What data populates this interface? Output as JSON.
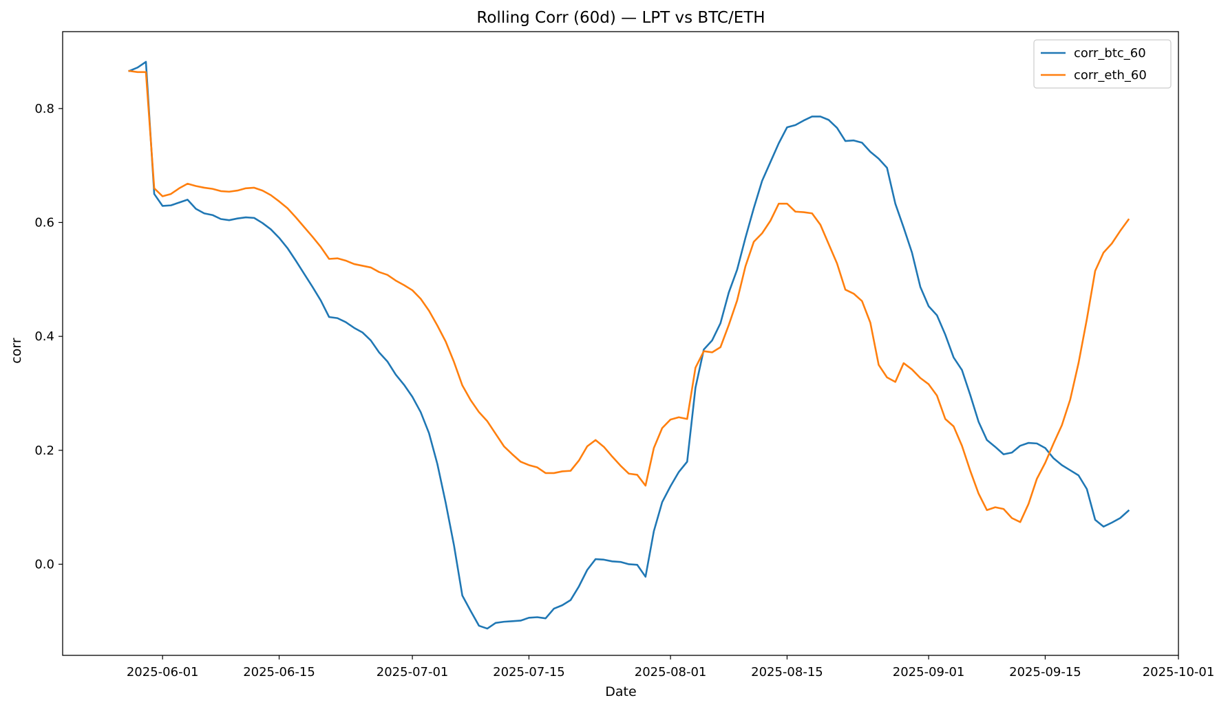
{
  "chart_data": {
    "type": "line",
    "title": "Rolling Corr (60d) — LPT vs BTC/ETH",
    "xlabel": "Date",
    "ylabel": "corr",
    "xlim": [
      "2025-05-20",
      "2025-10-01"
    ],
    "ylim": [
      -0.16,
      0.935
    ],
    "x_ticks": [
      "2025-06-01",
      "2025-06-15",
      "2025-07-01",
      "2025-07-15",
      "2025-08-01",
      "2025-08-15",
      "2025-09-01",
      "2025-09-15",
      "2025-10-01"
    ],
    "y_ticks": [
      0.0,
      0.2,
      0.4,
      0.6,
      0.8
    ],
    "y_tick_labels": [
      "0.0",
      "0.2",
      "0.4",
      "0.6",
      "0.8"
    ],
    "grid": false,
    "legend_position": "top-right",
    "series": [
      {
        "name": "corr_btc_60",
        "color": "#1f77b4",
        "points": [
          [
            "2025-05-28",
            0.866
          ],
          [
            "2025-05-29",
            0.872
          ],
          [
            "2025-05-30",
            0.882
          ],
          [
            "2025-05-31",
            0.65
          ],
          [
            "2025-06-01",
            0.629
          ],
          [
            "2025-06-02",
            0.63
          ],
          [
            "2025-06-03",
            0.635
          ],
          [
            "2025-06-04",
            0.64
          ],
          [
            "2025-06-05",
            0.624
          ],
          [
            "2025-06-06",
            0.616
          ],
          [
            "2025-06-07",
            0.613
          ],
          [
            "2025-06-08",
            0.606
          ],
          [
            "2025-06-09",
            0.604
          ],
          [
            "2025-06-10",
            0.607
          ],
          [
            "2025-06-11",
            0.609
          ],
          [
            "2025-06-12",
            0.608
          ],
          [
            "2025-06-13",
            0.599
          ],
          [
            "2025-06-14",
            0.588
          ],
          [
            "2025-06-15",
            0.573
          ],
          [
            "2025-06-16",
            0.555
          ],
          [
            "2025-06-17",
            0.533
          ],
          [
            "2025-06-18",
            0.51
          ],
          [
            "2025-06-19",
            0.487
          ],
          [
            "2025-06-20",
            0.463
          ],
          [
            "2025-06-21",
            0.434
          ],
          [
            "2025-06-22",
            0.432
          ],
          [
            "2025-06-23",
            0.425
          ],
          [
            "2025-06-24",
            0.415
          ],
          [
            "2025-06-25",
            0.407
          ],
          [
            "2025-06-26",
            0.393
          ],
          [
            "2025-06-27",
            0.372
          ],
          [
            "2025-06-28",
            0.356
          ],
          [
            "2025-06-29",
            0.333
          ],
          [
            "2025-06-30",
            0.315
          ],
          [
            "2025-07-01",
            0.294
          ],
          [
            "2025-07-02",
            0.267
          ],
          [
            "2025-07-03",
            0.23
          ],
          [
            "2025-07-04",
            0.176
          ],
          [
            "2025-07-05",
            0.108
          ],
          [
            "2025-07-06",
            0.033
          ],
          [
            "2025-07-07",
            -0.055
          ],
          [
            "2025-07-08",
            -0.082
          ],
          [
            "2025-07-09",
            -0.108
          ],
          [
            "2025-07-10",
            -0.113
          ],
          [
            "2025-07-11",
            -0.103
          ],
          [
            "2025-07-12",
            -0.101
          ],
          [
            "2025-07-13",
            -0.1
          ],
          [
            "2025-07-14",
            -0.099
          ],
          [
            "2025-07-15",
            -0.094
          ],
          [
            "2025-07-16",
            -0.093
          ],
          [
            "2025-07-17",
            -0.095
          ],
          [
            "2025-07-18",
            -0.078
          ],
          [
            "2025-07-19",
            -0.072
          ],
          [
            "2025-07-20",
            -0.063
          ],
          [
            "2025-07-21",
            -0.039
          ],
          [
            "2025-07-22",
            -0.01
          ],
          [
            "2025-07-23",
            0.009
          ],
          [
            "2025-07-24",
            0.008
          ],
          [
            "2025-07-25",
            0.005
          ],
          [
            "2025-07-26",
            0.004
          ],
          [
            "2025-07-27",
            0.0
          ],
          [
            "2025-07-28",
            -0.001
          ],
          [
            "2025-07-29",
            -0.022
          ],
          [
            "2025-07-30",
            0.058
          ],
          [
            "2025-07-31",
            0.109
          ],
          [
            "2025-08-01",
            0.137
          ],
          [
            "2025-08-02",
            0.162
          ],
          [
            "2025-08-03",
            0.18
          ],
          [
            "2025-08-04",
            0.31
          ],
          [
            "2025-08-05",
            0.377
          ],
          [
            "2025-08-06",
            0.393
          ],
          [
            "2025-08-07",
            0.423
          ],
          [
            "2025-08-08",
            0.477
          ],
          [
            "2025-08-09",
            0.517
          ],
          [
            "2025-08-10",
            0.573
          ],
          [
            "2025-08-11",
            0.625
          ],
          [
            "2025-08-12",
            0.673
          ],
          [
            "2025-08-13",
            0.706
          ],
          [
            "2025-08-14",
            0.739
          ],
          [
            "2025-08-15",
            0.767
          ],
          [
            "2025-08-16",
            0.771
          ],
          [
            "2025-08-17",
            0.779
          ],
          [
            "2025-08-18",
            0.786
          ],
          [
            "2025-08-19",
            0.786
          ],
          [
            "2025-08-20",
            0.78
          ],
          [
            "2025-08-21",
            0.766
          ],
          [
            "2025-08-22",
            0.743
          ],
          [
            "2025-08-23",
            0.744
          ],
          [
            "2025-08-24",
            0.74
          ],
          [
            "2025-08-25",
            0.724
          ],
          [
            "2025-08-26",
            0.712
          ],
          [
            "2025-08-27",
            0.696
          ],
          [
            "2025-08-28",
            0.633
          ],
          [
            "2025-08-29",
            0.591
          ],
          [
            "2025-08-30",
            0.547
          ],
          [
            "2025-08-31",
            0.487
          ],
          [
            "2025-09-01",
            0.453
          ],
          [
            "2025-09-02",
            0.437
          ],
          [
            "2025-09-03",
            0.403
          ],
          [
            "2025-09-04",
            0.363
          ],
          [
            "2025-09-05",
            0.341
          ],
          [
            "2025-09-06",
            0.297
          ],
          [
            "2025-09-07",
            0.25
          ],
          [
            "2025-09-08",
            0.218
          ],
          [
            "2025-09-09",
            0.206
          ],
          [
            "2025-09-10",
            0.193
          ],
          [
            "2025-09-11",
            0.196
          ],
          [
            "2025-09-12",
            0.208
          ],
          [
            "2025-09-13",
            0.213
          ],
          [
            "2025-09-14",
            0.212
          ],
          [
            "2025-09-15",
            0.204
          ],
          [
            "2025-09-16",
            0.186
          ],
          [
            "2025-09-17",
            0.174
          ],
          [
            "2025-09-18",
            0.165
          ],
          [
            "2025-09-19",
            0.156
          ],
          [
            "2025-09-20",
            0.132
          ],
          [
            "2025-09-21",
            0.078
          ],
          [
            "2025-09-22",
            0.066
          ],
          [
            "2025-09-23",
            0.073
          ],
          [
            "2025-09-24",
            0.081
          ],
          [
            "2025-09-25",
            0.094
          ]
        ]
      },
      {
        "name": "corr_eth_60",
        "color": "#ff7f0e",
        "points": [
          [
            "2025-05-28",
            0.866
          ],
          [
            "2025-05-29",
            0.864
          ],
          [
            "2025-05-30",
            0.864
          ],
          [
            "2025-05-31",
            0.66
          ],
          [
            "2025-06-01",
            0.646
          ],
          [
            "2025-06-02",
            0.65
          ],
          [
            "2025-06-03",
            0.66
          ],
          [
            "2025-06-04",
            0.668
          ],
          [
            "2025-06-05",
            0.664
          ],
          [
            "2025-06-06",
            0.661
          ],
          [
            "2025-06-07",
            0.659
          ],
          [
            "2025-06-08",
            0.655
          ],
          [
            "2025-06-09",
            0.654
          ],
          [
            "2025-06-10",
            0.656
          ],
          [
            "2025-06-11",
            0.66
          ],
          [
            "2025-06-12",
            0.661
          ],
          [
            "2025-06-13",
            0.656
          ],
          [
            "2025-06-14",
            0.648
          ],
          [
            "2025-06-15",
            0.637
          ],
          [
            "2025-06-16",
            0.625
          ],
          [
            "2025-06-17",
            0.609
          ],
          [
            "2025-06-18",
            0.592
          ],
          [
            "2025-06-19",
            0.575
          ],
          [
            "2025-06-20",
            0.557
          ],
          [
            "2025-06-21",
            0.536
          ],
          [
            "2025-06-22",
            0.537
          ],
          [
            "2025-06-23",
            0.533
          ],
          [
            "2025-06-24",
            0.527
          ],
          [
            "2025-06-25",
            0.524
          ],
          [
            "2025-06-26",
            0.521
          ],
          [
            "2025-06-27",
            0.513
          ],
          [
            "2025-06-28",
            0.508
          ],
          [
            "2025-06-29",
            0.498
          ],
          [
            "2025-06-30",
            0.49
          ],
          [
            "2025-07-01",
            0.481
          ],
          [
            "2025-07-02",
            0.466
          ],
          [
            "2025-07-03",
            0.445
          ],
          [
            "2025-07-04",
            0.419
          ],
          [
            "2025-07-05",
            0.391
          ],
          [
            "2025-07-06",
            0.355
          ],
          [
            "2025-07-07",
            0.314
          ],
          [
            "2025-07-08",
            0.288
          ],
          [
            "2025-07-09",
            0.267
          ],
          [
            "2025-07-10",
            0.251
          ],
          [
            "2025-07-11",
            0.229
          ],
          [
            "2025-07-12",
            0.207
          ],
          [
            "2025-07-13",
            0.193
          ],
          [
            "2025-07-14",
            0.18
          ],
          [
            "2025-07-15",
            0.174
          ],
          [
            "2025-07-16",
            0.17
          ],
          [
            "2025-07-17",
            0.16
          ],
          [
            "2025-07-18",
            0.16
          ],
          [
            "2025-07-19",
            0.163
          ],
          [
            "2025-07-20",
            0.164
          ],
          [
            "2025-07-21",
            0.182
          ],
          [
            "2025-07-22",
            0.207
          ],
          [
            "2025-07-23",
            0.218
          ],
          [
            "2025-07-24",
            0.206
          ],
          [
            "2025-07-25",
            0.189
          ],
          [
            "2025-07-26",
            0.173
          ],
          [
            "2025-07-27",
            0.159
          ],
          [
            "2025-07-28",
            0.157
          ],
          [
            "2025-07-29",
            0.138
          ],
          [
            "2025-07-30",
            0.204
          ],
          [
            "2025-07-31",
            0.239
          ],
          [
            "2025-08-01",
            0.254
          ],
          [
            "2025-08-02",
            0.258
          ],
          [
            "2025-08-03",
            0.255
          ],
          [
            "2025-08-04",
            0.345
          ],
          [
            "2025-08-05",
            0.374
          ],
          [
            "2025-08-06",
            0.372
          ],
          [
            "2025-08-07",
            0.381
          ],
          [
            "2025-08-08",
            0.42
          ],
          [
            "2025-08-09",
            0.463
          ],
          [
            "2025-08-10",
            0.523
          ],
          [
            "2025-08-11",
            0.566
          ],
          [
            "2025-08-12",
            0.581
          ],
          [
            "2025-08-13",
            0.603
          ],
          [
            "2025-08-14",
            0.633
          ],
          [
            "2025-08-15",
            0.633
          ],
          [
            "2025-08-16",
            0.619
          ],
          [
            "2025-08-17",
            0.618
          ],
          [
            "2025-08-18",
            0.616
          ],
          [
            "2025-08-19",
            0.596
          ],
          [
            "2025-08-20",
            0.562
          ],
          [
            "2025-08-21",
            0.528
          ],
          [
            "2025-08-22",
            0.482
          ],
          [
            "2025-08-23",
            0.475
          ],
          [
            "2025-08-24",
            0.462
          ],
          [
            "2025-08-25",
            0.424
          ],
          [
            "2025-08-26",
            0.35
          ],
          [
            "2025-08-27",
            0.328
          ],
          [
            "2025-08-28",
            0.32
          ],
          [
            "2025-08-29",
            0.353
          ],
          [
            "2025-08-30",
            0.342
          ],
          [
            "2025-08-31",
            0.327
          ],
          [
            "2025-09-01",
            0.316
          ],
          [
            "2025-09-02",
            0.296
          ],
          [
            "2025-09-03",
            0.255
          ],
          [
            "2025-09-04",
            0.242
          ],
          [
            "2025-09-05",
            0.208
          ],
          [
            "2025-09-06",
            0.164
          ],
          [
            "2025-09-07",
            0.124
          ],
          [
            "2025-09-08",
            0.095
          ],
          [
            "2025-09-09",
            0.1
          ],
          [
            "2025-09-10",
            0.097
          ],
          [
            "2025-09-11",
            0.081
          ],
          [
            "2025-09-12",
            0.074
          ],
          [
            "2025-09-13",
            0.106
          ],
          [
            "2025-09-14",
            0.15
          ],
          [
            "2025-09-15",
            0.178
          ],
          [
            "2025-09-16",
            0.212
          ],
          [
            "2025-09-17",
            0.244
          ],
          [
            "2025-09-18",
            0.289
          ],
          [
            "2025-09-19",
            0.353
          ],
          [
            "2025-09-20",
            0.43
          ],
          [
            "2025-09-21",
            0.515
          ],
          [
            "2025-09-22",
            0.547
          ],
          [
            "2025-09-23",
            0.563
          ],
          [
            "2025-09-24",
            0.585
          ],
          [
            "2025-09-25",
            0.605
          ]
        ]
      }
    ]
  }
}
